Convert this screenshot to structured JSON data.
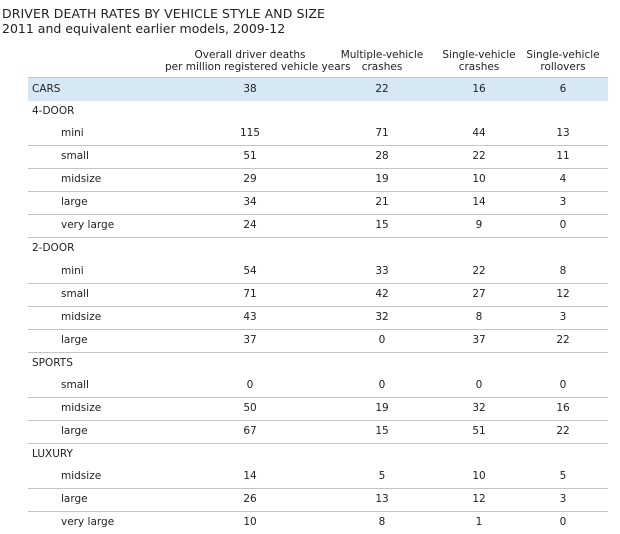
{
  "chart_data": {
    "type": "table",
    "title": "DRIVER DEATH RATES BY VEHICLE STYLE AND SIZE",
    "subtitle": "2011 and equivalent earlier models, 2009-12",
    "columns": [
      [
        "Overall driver deaths",
        "per million registered vehicle years"
      ],
      [
        "Multiple-vehicle",
        "crashes"
      ],
      [
        "Single-vehicle",
        "crashes"
      ],
      [
        "Single-vehicle",
        "rollovers"
      ]
    ],
    "summary_row": {
      "label": "CARS",
      "values": [
        38,
        22,
        16,
        6
      ]
    },
    "groups": [
      {
        "label": "4-DOOR",
        "rows": [
          {
            "label": "mini",
            "values": [
              115,
              71,
              44,
              13
            ]
          },
          {
            "label": "small",
            "values": [
              51,
              28,
              22,
              11
            ]
          },
          {
            "label": "midsize",
            "values": [
              29,
              19,
              10,
              4
            ]
          },
          {
            "label": "large",
            "values": [
              34,
              21,
              14,
              3
            ]
          },
          {
            "label": "very large",
            "values": [
              24,
              15,
              9,
              0
            ]
          }
        ]
      },
      {
        "label": "2-DOOR",
        "rows": [
          {
            "label": "mini",
            "values": [
              54,
              33,
              22,
              8
            ]
          },
          {
            "label": "small",
            "values": [
              71,
              42,
              27,
              12
            ]
          },
          {
            "label": "midsize",
            "values": [
              43,
              32,
              8,
              3
            ]
          },
          {
            "label": "large",
            "values": [
              37,
              0,
              37,
              22
            ]
          }
        ]
      },
      {
        "label": "SPORTS",
        "rows": [
          {
            "label": "small",
            "values": [
              0,
              0,
              0,
              0
            ]
          },
          {
            "label": "midsize",
            "values": [
              50,
              19,
              32,
              16
            ]
          },
          {
            "label": "large",
            "values": [
              67,
              15,
              51,
              22
            ]
          }
        ]
      },
      {
        "label": "LUXURY",
        "rows": [
          {
            "label": "midsize",
            "values": [
              14,
              5,
              10,
              5
            ]
          },
          {
            "label": "large",
            "values": [
              26,
              13,
              12,
              3
            ]
          },
          {
            "label": "very large",
            "values": [
              10,
              8,
              1,
              0
            ]
          }
        ]
      }
    ],
    "highlight_color": "#d6e8f3",
    "rule_color": "#c5c5c5"
  }
}
